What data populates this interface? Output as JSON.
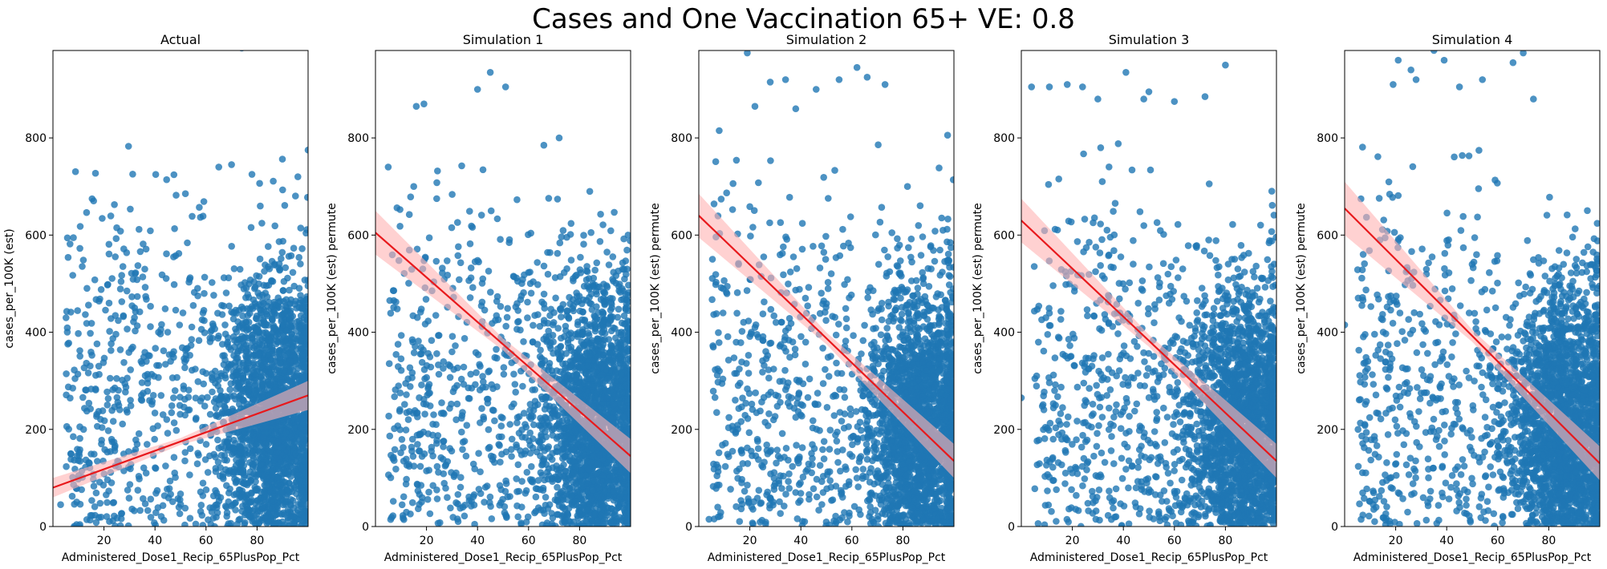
{
  "figure": {
    "suptitle": "Cases and One Vaccination 65+ VE: 0.8"
  },
  "colors": {
    "points": "#1f77b4",
    "regression_line": "#e8191c",
    "confidence_band": "#ffb3b3"
  },
  "chart_data": [
    {
      "type": "scatter",
      "title": "Actual",
      "xlabel": "Administered_Dose1_Recip_65PlusPop_Pct",
      "ylabel": "cases_per_100K (est)",
      "xlim": [
        0,
        100
      ],
      "ylim": [
        0,
        980
      ],
      "xticks": [
        20,
        40,
        60,
        80
      ],
      "yticks": [
        0,
        200,
        400,
        600,
        800
      ],
      "grid": false,
      "regression": {
        "x": [
          0,
          100
        ],
        "y": [
          80,
          270
        ],
        "ci_at_ends": [
          20,
          30
        ]
      },
      "point_cloud": {
        "count": 2600,
        "x_mode": 87,
        "cluster_y_mean": 230,
        "seed": 11
      },
      "notable_points": [
        [
          74,
          985
        ],
        [
          12,
          200
        ],
        [
          19,
          170
        ],
        [
          22,
          460
        ],
        [
          29,
          485
        ],
        [
          36,
          530
        ],
        [
          55,
          455
        ],
        [
          65,
          740
        ],
        [
          70,
          745
        ],
        [
          78,
          725
        ],
        [
          96,
          720
        ],
        [
          100,
          775
        ],
        [
          3,
          45
        ],
        [
          7,
          150
        ]
      ]
    },
    {
      "type": "scatter",
      "title": "Simulation 1",
      "xlabel": "Administered_Dose1_Recip_65PlusPop_Pct",
      "ylabel": "cases_per_100K (est) permute",
      "xlim": [
        0,
        100
      ],
      "ylim": [
        0,
        980
      ],
      "xticks": [
        20,
        40,
        60,
        80
      ],
      "yticks": [
        0,
        200,
        400,
        600,
        800
      ],
      "grid": false,
      "regression": {
        "x": [
          0,
          100
        ],
        "y": [
          605,
          145
        ],
        "ci_at_ends": [
          45,
          35
        ]
      },
      "point_cloud": {
        "count": 2600,
        "x_mode": 87,
        "cluster_y_mean": 210,
        "seed": 23
      },
      "notable_points": [
        [
          5,
          740
        ],
        [
          16,
          865
        ],
        [
          19,
          870
        ],
        [
          24,
          675
        ],
        [
          40,
          900
        ],
        [
          45,
          935
        ],
        [
          51,
          905
        ],
        [
          66,
          785
        ],
        [
          72,
          800
        ],
        [
          84,
          690
        ],
        [
          99,
          600
        ],
        [
          15,
          700
        ]
      ]
    },
    {
      "type": "scatter",
      "title": "Simulation 2",
      "xlabel": "Administered_Dose1_Recip_65PlusPop_Pct",
      "ylabel": "cases_per_100K (est) permute",
      "xlim": [
        0,
        100
      ],
      "ylim": [
        0,
        980
      ],
      "xticks": [
        20,
        40,
        60,
        80
      ],
      "yticks": [
        0,
        200,
        400,
        600,
        800
      ],
      "grid": false,
      "regression": {
        "x": [
          0,
          100
        ],
        "y": [
          640,
          135
        ],
        "ci_at_ends": [
          45,
          35
        ]
      },
      "point_cloud": {
        "count": 2600,
        "x_mode": 87,
        "cluster_y_mean": 210,
        "seed": 37
      },
      "notable_points": [
        [
          19,
          975
        ],
        [
          22,
          865
        ],
        [
          28,
          915
        ],
        [
          34,
          920
        ],
        [
          46,
          900
        ],
        [
          55,
          920
        ],
        [
          62,
          945
        ],
        [
          66,
          925
        ],
        [
          73,
          910
        ],
        [
          8,
          815
        ],
        [
          4,
          15
        ],
        [
          38,
          860
        ]
      ]
    },
    {
      "type": "scatter",
      "title": "Simulation 3",
      "xlabel": "Administered_Dose1_Recip_65PlusPop_Pct",
      "ylabel": "cases_per_100K (est) permute",
      "xlim": [
        0,
        100
      ],
      "ylim": [
        0,
        980
      ],
      "xticks": [
        20,
        40,
        60,
        80
      ],
      "yticks": [
        0,
        200,
        400,
        600,
        800
      ],
      "grid": false,
      "regression": {
        "x": [
          0,
          100
        ],
        "y": [
          630,
          135
        ],
        "ci_at_ends": [
          45,
          35
        ]
      },
      "point_cloud": {
        "count": 2600,
        "x_mode": 87,
        "cluster_y_mean": 210,
        "seed": 53
      },
      "notable_points": [
        [
          4,
          905
        ],
        [
          11,
          905
        ],
        [
          18,
          910
        ],
        [
          24,
          905
        ],
        [
          30,
          880
        ],
        [
          41,
          935
        ],
        [
          50,
          895
        ],
        [
          60,
          875
        ],
        [
          72,
          885
        ],
        [
          80,
          950
        ],
        [
          0,
          265
        ],
        [
          48,
          880
        ]
      ]
    },
    {
      "type": "scatter",
      "title": "Simulation 4",
      "xlabel": "Administered_Dose1_Recip_65PlusPop_Pct",
      "ylabel": "cases_per_100K (est) permute",
      "xlim": [
        0,
        100
      ],
      "ylim": [
        0,
        980
      ],
      "xticks": [
        20,
        40,
        60,
        80
      ],
      "yticks": [
        0,
        200,
        400,
        600,
        800
      ],
      "grid": false,
      "regression": {
        "x": [
          0,
          100
        ],
        "y": [
          655,
          130
        ],
        "ci_at_ends": [
          55,
          35
        ]
      },
      "point_cloud": {
        "count": 2600,
        "x_mode": 87,
        "cluster_y_mean": 210,
        "seed": 71
      },
      "notable_points": [
        [
          19,
          910
        ],
        [
          21,
          960
        ],
        [
          28,
          920
        ],
        [
          35,
          980
        ],
        [
          39,
          960
        ],
        [
          45,
          905
        ],
        [
          54,
          920
        ],
        [
          66,
          955
        ],
        [
          70,
          975
        ],
        [
          74,
          880
        ],
        [
          0,
          415
        ],
        [
          26,
          940
        ]
      ]
    }
  ]
}
